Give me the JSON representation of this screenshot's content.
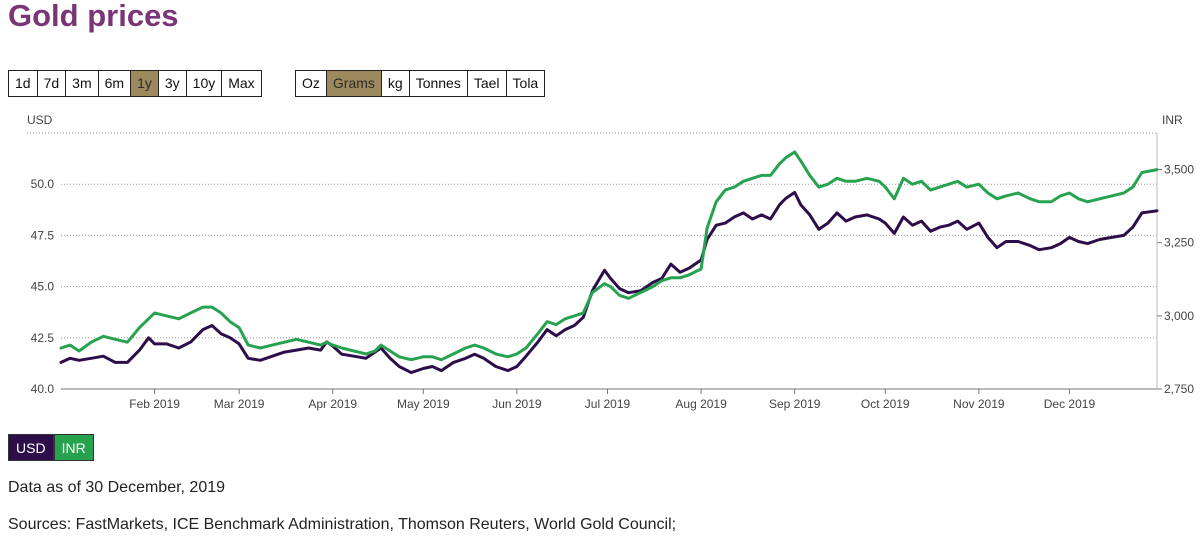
{
  "title": "Gold prices",
  "time_ranges": [
    {
      "label": "1d",
      "active": false
    },
    {
      "label": "7d",
      "active": false
    },
    {
      "label": "3m",
      "active": false
    },
    {
      "label": "6m",
      "active": false
    },
    {
      "label": "1y",
      "active": true
    },
    {
      "label": "3y",
      "active": false
    },
    {
      "label": "10y",
      "active": false
    },
    {
      "label": "Max",
      "active": false
    }
  ],
  "units": [
    {
      "label": "Oz",
      "active": false
    },
    {
      "label": "Grams",
      "active": true
    },
    {
      "label": "kg",
      "active": false
    },
    {
      "label": "Tonnes",
      "active": false
    },
    {
      "label": "Tael",
      "active": false
    },
    {
      "label": "Tola",
      "active": false
    }
  ],
  "legend": [
    {
      "label": "USD",
      "color": "#2d0e4a"
    },
    {
      "label": "INR",
      "color": "#27a350"
    }
  ],
  "footer": {
    "data_as_of": "Data as of 30 December, 2019",
    "sources": "Sources: FastMarkets, ICE Benchmark Administration, Thomson Reuters, World Gold Council;"
  },
  "chart_data": {
    "type": "line",
    "title": "Gold prices",
    "x_start": "2019-01-01",
    "x_end": "2019-12-30",
    "xticks": [
      {
        "label": "Feb 2019",
        "day": 31
      },
      {
        "label": "Mar 2019",
        "day": 59
      },
      {
        "label": "Apr 2019",
        "day": 90
      },
      {
        "label": "May 2019",
        "day": 120
      },
      {
        "label": "Jun 2019",
        "day": 151
      },
      {
        "label": "Jul 2019",
        "day": 181
      },
      {
        "label": "Aug 2019",
        "day": 212
      },
      {
        "label": "Sep 2019",
        "day": 243
      },
      {
        "label": "Oct 2019",
        "day": 273
      },
      {
        "label": "Nov 2019",
        "day": 304
      },
      {
        "label": "Dec 2019",
        "day": 334
      }
    ],
    "left_axis": {
      "label": "USD",
      "ylim": [
        40.0,
        52.5
      ],
      "ticks": [
        "40.0",
        "42.5",
        "45.0",
        "47.5",
        "50.0"
      ],
      "tick_values": [
        40.0,
        42.5,
        45.0,
        47.5,
        50.0
      ]
    },
    "right_axis": {
      "label": "INR",
      "ylim": [
        2750,
        3625
      ],
      "ticks": [
        "2,750",
        "3,000",
        "3,250",
        "3,500"
      ],
      "tick_values": [
        2750,
        3000,
        3250,
        3500
      ]
    },
    "series": [
      {
        "name": "USD",
        "axis": "left",
        "color": "#2d0e4a",
        "points": [
          [
            0,
            41.3
          ],
          [
            3,
            41.5
          ],
          [
            6,
            41.4
          ],
          [
            10,
            41.5
          ],
          [
            14,
            41.6
          ],
          [
            18,
            41.3
          ],
          [
            22,
            41.3
          ],
          [
            26,
            41.9
          ],
          [
            29,
            42.5
          ],
          [
            31,
            42.2
          ],
          [
            35,
            42.2
          ],
          [
            39,
            42.0
          ],
          [
            43,
            42.3
          ],
          [
            47,
            42.9
          ],
          [
            50,
            43.1
          ],
          [
            53,
            42.7
          ],
          [
            56,
            42.5
          ],
          [
            59,
            42.2
          ],
          [
            62,
            41.5
          ],
          [
            66,
            41.4
          ],
          [
            70,
            41.6
          ],
          [
            74,
            41.8
          ],
          [
            78,
            41.9
          ],
          [
            82,
            42.0
          ],
          [
            86,
            41.9
          ],
          [
            88,
            42.3
          ],
          [
            90,
            42.1
          ],
          [
            93,
            41.7
          ],
          [
            97,
            41.6
          ],
          [
            101,
            41.5
          ],
          [
            104,
            41.8
          ],
          [
            106,
            42.0
          ],
          [
            109,
            41.5
          ],
          [
            112,
            41.1
          ],
          [
            116,
            40.8
          ],
          [
            120,
            41.0
          ],
          [
            123,
            41.1
          ],
          [
            126,
            40.9
          ],
          [
            130,
            41.3
          ],
          [
            134,
            41.5
          ],
          [
            137,
            41.7
          ],
          [
            140,
            41.5
          ],
          [
            144,
            41.1
          ],
          [
            148,
            40.9
          ],
          [
            151,
            41.1
          ],
          [
            154,
            41.6
          ],
          [
            158,
            42.3
          ],
          [
            161,
            42.9
          ],
          [
            164,
            42.6
          ],
          [
            167,
            42.9
          ],
          [
            170,
            43.1
          ],
          [
            173,
            43.5
          ],
          [
            176,
            44.8
          ],
          [
            180,
            45.8
          ],
          [
            182,
            45.4
          ],
          [
            185,
            44.9
          ],
          [
            188,
            44.7
          ],
          [
            192,
            44.8
          ],
          [
            196,
            45.2
          ],
          [
            199,
            45.4
          ],
          [
            202,
            46.1
          ],
          [
            205,
            45.7
          ],
          [
            208,
            45.9
          ],
          [
            212,
            46.3
          ],
          [
            214,
            47.3
          ],
          [
            217,
            48.0
          ],
          [
            220,
            48.1
          ],
          [
            223,
            48.4
          ],
          [
            226,
            48.6
          ],
          [
            229,
            48.3
          ],
          [
            232,
            48.5
          ],
          [
            235,
            48.3
          ],
          [
            238,
            49.0
          ],
          [
            240,
            49.3
          ],
          [
            243,
            49.6
          ],
          [
            245,
            49.0
          ],
          [
            248,
            48.5
          ],
          [
            251,
            47.8
          ],
          [
            254,
            48.1
          ],
          [
            257,
            48.6
          ],
          [
            260,
            48.2
          ],
          [
            263,
            48.4
          ],
          [
            267,
            48.5
          ],
          [
            271,
            48.3
          ],
          [
            273,
            48.1
          ],
          [
            276,
            47.6
          ],
          [
            279,
            48.4
          ],
          [
            282,
            48.0
          ],
          [
            285,
            48.2
          ],
          [
            288,
            47.7
          ],
          [
            291,
            47.9
          ],
          [
            294,
            48.0
          ],
          [
            297,
            48.2
          ],
          [
            300,
            47.8
          ],
          [
            304,
            48.1
          ],
          [
            307,
            47.4
          ],
          [
            310,
            46.9
          ],
          [
            313,
            47.2
          ],
          [
            317,
            47.2
          ],
          [
            321,
            47.0
          ],
          [
            324,
            46.8
          ],
          [
            328,
            46.9
          ],
          [
            331,
            47.1
          ],
          [
            334,
            47.4
          ],
          [
            337,
            47.2
          ],
          [
            340,
            47.1
          ],
          [
            344,
            47.3
          ],
          [
            348,
            47.4
          ],
          [
            352,
            47.5
          ],
          [
            355,
            47.9
          ],
          [
            358,
            48.6
          ],
          [
            363,
            48.7
          ]
        ]
      },
      {
        "name": "INR",
        "axis": "right",
        "color": "#27a350",
        "points": [
          [
            0,
            2890
          ],
          [
            3,
            2900
          ],
          [
            6,
            2880
          ],
          [
            10,
            2910
          ],
          [
            14,
            2930
          ],
          [
            18,
            2920
          ],
          [
            22,
            2910
          ],
          [
            26,
            2960
          ],
          [
            29,
            2990
          ],
          [
            31,
            3010
          ],
          [
            35,
            3000
          ],
          [
            39,
            2990
          ],
          [
            43,
            3010
          ],
          [
            47,
            3030
          ],
          [
            50,
            3030
          ],
          [
            53,
            3010
          ],
          [
            56,
            2980
          ],
          [
            59,
            2960
          ],
          [
            62,
            2900
          ],
          [
            66,
            2890
          ],
          [
            70,
            2900
          ],
          [
            74,
            2910
          ],
          [
            78,
            2920
          ],
          [
            82,
            2910
          ],
          [
            86,
            2900
          ],
          [
            88,
            2910
          ],
          [
            90,
            2900
          ],
          [
            93,
            2890
          ],
          [
            97,
            2880
          ],
          [
            101,
            2870
          ],
          [
            104,
            2880
          ],
          [
            106,
            2900
          ],
          [
            109,
            2880
          ],
          [
            112,
            2860
          ],
          [
            116,
            2850
          ],
          [
            120,
            2860
          ],
          [
            123,
            2860
          ],
          [
            126,
            2850
          ],
          [
            130,
            2870
          ],
          [
            134,
            2890
          ],
          [
            137,
            2900
          ],
          [
            140,
            2890
          ],
          [
            144,
            2870
          ],
          [
            148,
            2860
          ],
          [
            151,
            2870
          ],
          [
            154,
            2890
          ],
          [
            158,
            2940
          ],
          [
            161,
            2980
          ],
          [
            164,
            2970
          ],
          [
            167,
            2990
          ],
          [
            170,
            3000
          ],
          [
            173,
            3010
          ],
          [
            176,
            3080
          ],
          [
            180,
            3110
          ],
          [
            182,
            3100
          ],
          [
            185,
            3070
          ],
          [
            188,
            3060
          ],
          [
            192,
            3080
          ],
          [
            196,
            3100
          ],
          [
            199,
            3120
          ],
          [
            202,
            3130
          ],
          [
            205,
            3130
          ],
          [
            208,
            3140
          ],
          [
            212,
            3160
          ],
          [
            214,
            3300
          ],
          [
            217,
            3390
          ],
          [
            220,
            3430
          ],
          [
            223,
            3440
          ],
          [
            226,
            3460
          ],
          [
            229,
            3470
          ],
          [
            232,
            3480
          ],
          [
            235,
            3480
          ],
          [
            238,
            3520
          ],
          [
            240,
            3540
          ],
          [
            243,
            3560
          ],
          [
            245,
            3530
          ],
          [
            248,
            3480
          ],
          [
            251,
            3440
          ],
          [
            254,
            3450
          ],
          [
            257,
            3470
          ],
          [
            260,
            3460
          ],
          [
            263,
            3460
          ],
          [
            267,
            3470
          ],
          [
            271,
            3460
          ],
          [
            273,
            3440
          ],
          [
            276,
            3400
          ],
          [
            279,
            3470
          ],
          [
            282,
            3450
          ],
          [
            285,
            3460
          ],
          [
            288,
            3430
          ],
          [
            291,
            3440
          ],
          [
            294,
            3450
          ],
          [
            297,
            3460
          ],
          [
            300,
            3440
          ],
          [
            304,
            3450
          ],
          [
            307,
            3420
          ],
          [
            310,
            3400
          ],
          [
            313,
            3410
          ],
          [
            317,
            3420
          ],
          [
            321,
            3400
          ],
          [
            324,
            3390
          ],
          [
            328,
            3390
          ],
          [
            331,
            3410
          ],
          [
            334,
            3420
          ],
          [
            337,
            3400
          ],
          [
            340,
            3390
          ],
          [
            344,
            3400
          ],
          [
            348,
            3410
          ],
          [
            352,
            3420
          ],
          [
            355,
            3440
          ],
          [
            358,
            3490
          ],
          [
            363,
            3500
          ]
        ]
      }
    ]
  }
}
